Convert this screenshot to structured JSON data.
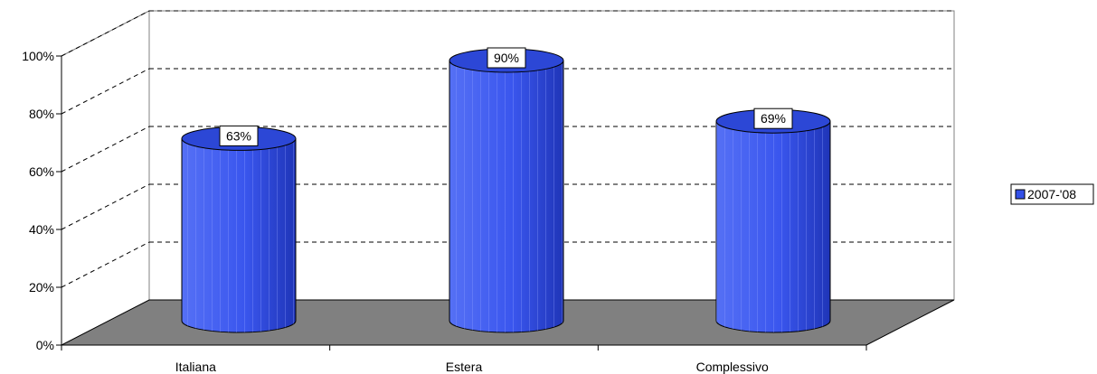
{
  "chart_data": {
    "type": "bar",
    "style": "3d-cylinder",
    "categories": [
      "Italiana",
      "Estera",
      "Complessivo"
    ],
    "series": [
      {
        "name": "2007-'08",
        "values": [
          63,
          90,
          69
        ],
        "color": "#3350e8"
      }
    ],
    "data_labels": [
      "63%",
      "90%",
      "69%"
    ],
    "y_ticks": [
      "0%",
      "20%",
      "40%",
      "60%",
      "80%",
      "100%"
    ],
    "ylim": [
      0,
      100
    ],
    "grid": true,
    "legend_position": "right"
  },
  "colors": {
    "bar_front": "#3350e8",
    "bar_top": "#2c47d6",
    "floor": "#808080",
    "grid": "#000000"
  }
}
